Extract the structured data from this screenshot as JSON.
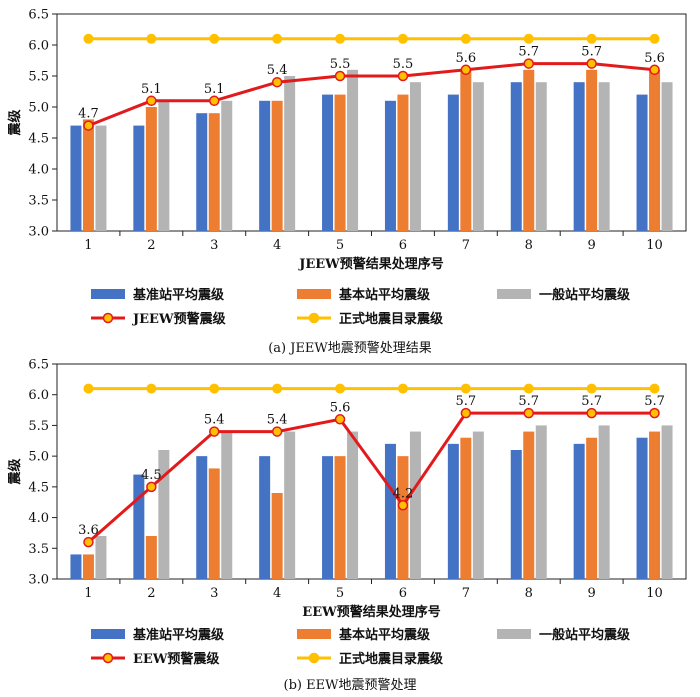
{
  "chart_data": [
    {
      "type": "bar",
      "caption": "(a) JEEW地震预警处理结果",
      "xlabel": "JEEW预警结果处理序号",
      "ylabel": "震级",
      "ylim": [
        3.0,
        6.5
      ],
      "yticks": [
        "3.0",
        "3.5",
        "4.0",
        "4.5",
        "5.0",
        "5.5",
        "6.0",
        "6.5"
      ],
      "categories": [
        "1",
        "2",
        "3",
        "4",
        "5",
        "6",
        "7",
        "8",
        "9",
        "10"
      ],
      "series": [
        {
          "name": "基准站平均震级",
          "kind": "bar",
          "color": "#4472c4",
          "values": [
            4.7,
            4.7,
            4.9,
            5.1,
            5.2,
            5.1,
            5.2,
            5.4,
            5.4,
            5.2
          ]
        },
        {
          "name": "基本站平均震级",
          "kind": "bar",
          "color": "#ed7d31",
          "values": [
            4.8,
            5.0,
            4.9,
            5.1,
            5.2,
            5.2,
            5.6,
            5.6,
            5.6,
            5.6
          ]
        },
        {
          "name": "一般站平均震级",
          "kind": "bar",
          "color": "#b4b4b4",
          "values": [
            4.7,
            5.1,
            5.1,
            5.5,
            5.6,
            5.4,
            5.4,
            5.4,
            5.4,
            5.4
          ]
        },
        {
          "name": "JEEW预警震级",
          "kind": "line",
          "color": "#e31a1c",
          "values": [
            4.7,
            5.1,
            5.1,
            5.4,
            5.5,
            5.5,
            5.6,
            5.7,
            5.7,
            5.6
          ],
          "labels": [
            "4.7",
            "5.1",
            "5.1",
            "5.4",
            "5.5",
            "5.5",
            "5.6",
            "5.7",
            "5.7",
            "5.6"
          ]
        },
        {
          "name": "正式地震目录震级",
          "kind": "line",
          "color": "#ffc000",
          "values": [
            6.1,
            6.1,
            6.1,
            6.1,
            6.1,
            6.1,
            6.1,
            6.1,
            6.1,
            6.1
          ]
        }
      ],
      "legend_placement": "bottom",
      "grid": false
    },
    {
      "type": "bar",
      "caption": "(b) EEW地震预警处理",
      "xlabel": "EEW预警结果处理序号",
      "ylabel": "震级",
      "ylim": [
        3.0,
        6.5
      ],
      "yticks": [
        "3.0",
        "3.5",
        "4.0",
        "4.5",
        "5.0",
        "5.5",
        "6.0",
        "6.5"
      ],
      "categories": [
        "1",
        "2",
        "3",
        "4",
        "5",
        "6",
        "7",
        "8",
        "9",
        "10"
      ],
      "series": [
        {
          "name": "基准站平均震级",
          "kind": "bar",
          "color": "#4472c4",
          "values": [
            3.4,
            4.7,
            5.0,
            5.0,
            5.0,
            5.2,
            5.2,
            5.1,
            5.2,
            5.3
          ]
        },
        {
          "name": "基本站平均震级",
          "kind": "bar",
          "color": "#ed7d31",
          "values": [
            3.4,
            3.7,
            4.8,
            4.4,
            5.0,
            5.0,
            5.3,
            5.4,
            5.3,
            5.4
          ]
        },
        {
          "name": "一般站平均震级",
          "kind": "bar",
          "color": "#b4b4b4",
          "values": [
            3.7,
            5.1,
            5.4,
            5.4,
            5.4,
            5.4,
            5.4,
            5.5,
            5.5,
            5.5
          ]
        },
        {
          "name": "EEW预警震级",
          "kind": "line",
          "color": "#e31a1c",
          "values": [
            3.6,
            4.5,
            5.4,
            5.4,
            5.6,
            4.2,
            5.7,
            5.7,
            5.7,
            5.7
          ],
          "labels": [
            "3.6",
            "4.5",
            "5.4",
            "5.4",
            "5.6",
            "4.2",
            "5.7",
            "5.7",
            "5.7",
            "5.7"
          ]
        },
        {
          "name": "正式地震目录震级",
          "kind": "line",
          "color": "#ffc000",
          "values": [
            6.1,
            6.1,
            6.1,
            6.1,
            6.1,
            6.1,
            6.1,
            6.1,
            6.1,
            6.1
          ]
        }
      ],
      "legend_placement": "bottom",
      "grid": false
    }
  ]
}
